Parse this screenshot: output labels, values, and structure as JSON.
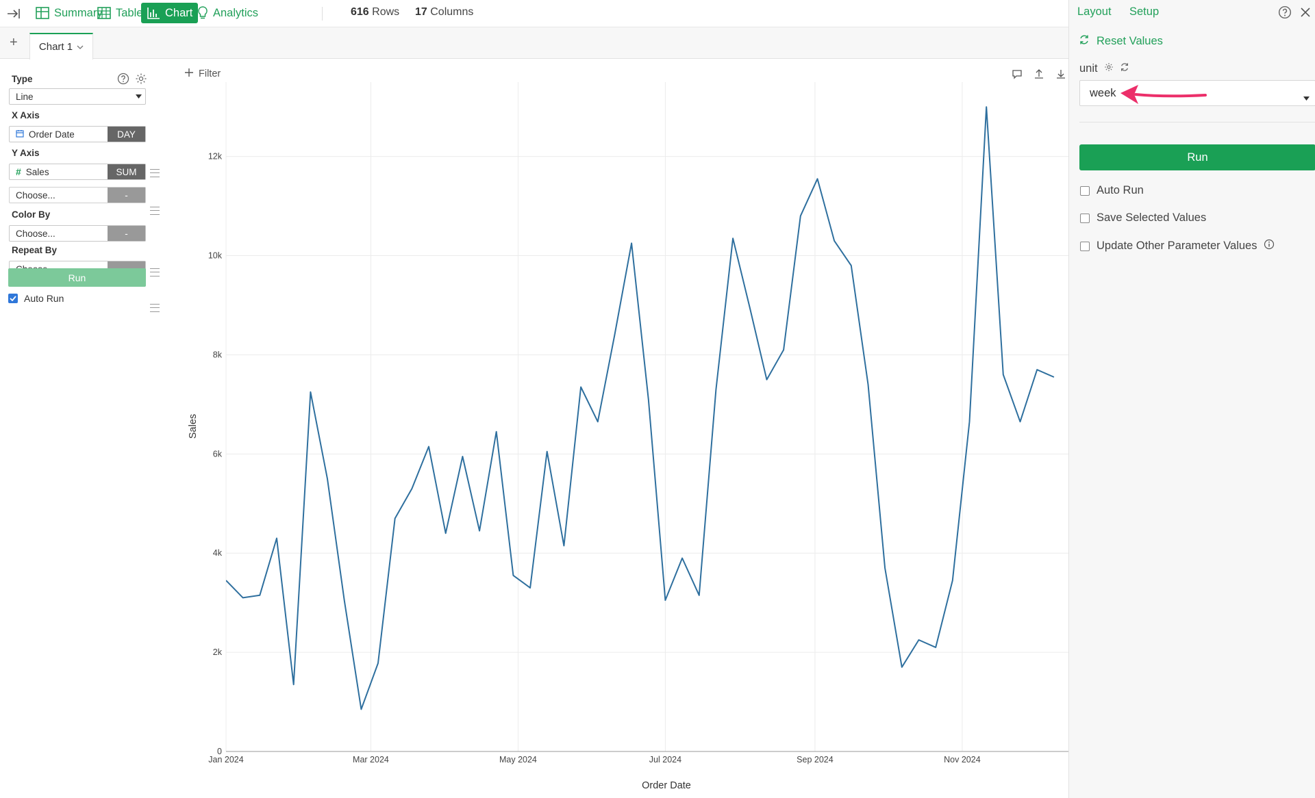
{
  "toolbar": {
    "tabs": [
      {
        "label": "Summary",
        "icon": "summary-grid-icon",
        "active": false
      },
      {
        "label": "Table",
        "icon": "table-icon",
        "active": false
      },
      {
        "label": "Chart",
        "icon": "bar-chart-icon",
        "active": true
      },
      {
        "label": "Analytics",
        "icon": "lightbulb-icon",
        "active": false
      }
    ],
    "rows_count": "616",
    "rows_label": "Rows",
    "cols_count": "17",
    "cols_label": "Columns"
  },
  "chart_tabs": {
    "add_symbol": "+",
    "active_tab": "Chart 1"
  },
  "config": {
    "type_label": "Type",
    "type_value": "Line",
    "x_axis_label": "X Axis",
    "x_axis_field": "Order Date",
    "x_axis_agg": "DAY",
    "y_axis_label": "Y Axis",
    "y_axis_field": "Sales",
    "y_axis_agg": "SUM",
    "y_axis_extra_placeholder": "Choose...",
    "y_axis_extra_agg": "-",
    "color_by_label": "Color By",
    "color_by_placeholder": "Choose...",
    "color_by_agg": "-",
    "repeat_by_label": "Repeat By",
    "repeat_by_placeholder": "Choose...",
    "repeat_by_agg": "-",
    "run_label": "Run",
    "auto_run_label": "Auto Run",
    "auto_run_checked": true
  },
  "chart_header": {
    "filter_label": "Filter"
  },
  "chart_data": {
    "type": "line",
    "xlabel": "Order Date",
    "ylabel": "Sales",
    "ylim": [
      0,
      13500
    ],
    "yticks": [
      0,
      2000,
      4000,
      6000,
      8000,
      10000,
      12000
    ],
    "ytick_labels": [
      "0",
      "2k",
      "4k",
      "6k",
      "8k",
      "10k",
      "12k"
    ],
    "xlim": [
      "2024-01-01",
      "2024-12-15"
    ],
    "xticks": [
      "2024-01-01",
      "2024-03-01",
      "2024-05-01",
      "2024-07-01",
      "2024-09-01",
      "2024-11-01"
    ],
    "xtick_labels": [
      "Jan 2024",
      "Mar 2024",
      "May 2024",
      "Jul 2024",
      "Sep 2024",
      "Nov 2024"
    ],
    "line_color": "#2e6f9e",
    "grid": true,
    "x": [
      "2024-01-01",
      "2024-01-08",
      "2024-01-15",
      "2024-01-22",
      "2024-01-29",
      "2024-02-05",
      "2024-02-12",
      "2024-02-19",
      "2024-02-26",
      "2024-03-04",
      "2024-03-11",
      "2024-03-18",
      "2024-03-25",
      "2024-04-01",
      "2024-04-08",
      "2024-04-15",
      "2024-04-22",
      "2024-04-29",
      "2024-05-06",
      "2024-05-13",
      "2024-05-20",
      "2024-05-27",
      "2024-06-03",
      "2024-06-10",
      "2024-06-17",
      "2024-06-24",
      "2024-07-01",
      "2024-07-08",
      "2024-07-15",
      "2024-07-22",
      "2024-07-29",
      "2024-08-05",
      "2024-08-12",
      "2024-08-19",
      "2024-08-26",
      "2024-09-02",
      "2024-09-09",
      "2024-09-16",
      "2024-09-23",
      "2024-09-30",
      "2024-10-07",
      "2024-10-14",
      "2024-10-21",
      "2024-10-28",
      "2024-11-04",
      "2024-11-11",
      "2024-11-18",
      "2024-11-25",
      "2024-12-02",
      "2024-12-09"
    ],
    "series": [
      {
        "values": [
          3450,
          3100,
          3150,
          4300,
          1350,
          7250,
          5500,
          3050,
          850,
          1780,
          4700,
          5300,
          6150,
          4400,
          5950,
          4450,
          6450,
          3550,
          3300,
          6050,
          4150,
          7350,
          6650,
          8400,
          10250,
          7100,
          3050,
          3900,
          3150,
          7300,
          10350,
          8950,
          7500,
          8100,
          10800,
          11550,
          10300,
          9800,
          7400,
          3700,
          1700,
          2250,
          2100,
          3450,
          6650,
          13000,
          7600,
          6650,
          7700,
          7550
        ]
      }
    ]
  },
  "right_panel": {
    "layout_tab": "Layout",
    "setup_tab": "Setup",
    "reset_label": "Reset Values",
    "param_name": "unit",
    "param_value": "week",
    "run_label": "Run",
    "auto_run_label": "Auto Run",
    "save_selected_label": "Save Selected Values",
    "update_other_label": "Update Other Parameter Values",
    "arrow_color": "#ec2f6a"
  }
}
